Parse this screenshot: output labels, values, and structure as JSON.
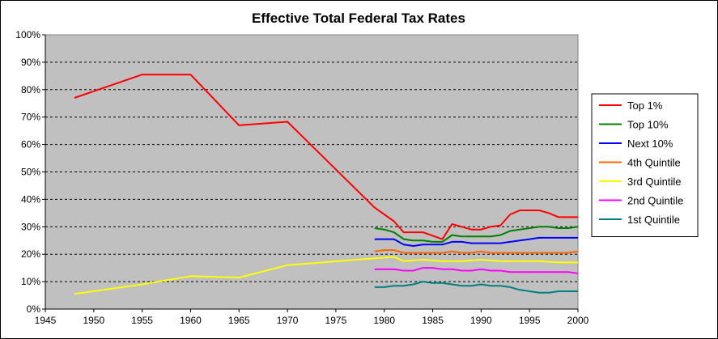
{
  "chart_data": {
    "type": "line",
    "title": "Effective Total Federal Tax Rates",
    "xlabel": "",
    "ylabel": "",
    "xlim": [
      1945,
      2000
    ],
    "ylim": [
      0,
      100
    ],
    "x_ticks": [
      "1945",
      "1950",
      "1955",
      "1960",
      "1965",
      "1970",
      "1975",
      "1980",
      "1985",
      "1990",
      "1995",
      "2000"
    ],
    "y_ticks": [
      "0%",
      "10%",
      "20%",
      "30%",
      "40%",
      "50%",
      "60%",
      "70%",
      "80%",
      "90%",
      "100%"
    ],
    "grid": "horizontal dashed",
    "legend_position": "right",
    "plot_background": "#c0c0c0",
    "series": [
      {
        "name": "Top 1%",
        "color": "#ff0000",
        "x": [
          1948,
          1955,
          1960,
          1965,
          1970,
          1979,
          1981,
          1982,
          1984,
          1986,
          1987,
          1988,
          1989,
          1990,
          1991,
          1992,
          1993,
          1994,
          1995,
          1996,
          1997,
          1998,
          1999,
          2000
        ],
        "y": [
          77,
          85.5,
          85.5,
          67,
          68.3,
          37,
          32,
          28,
          28,
          25.5,
          31,
          30,
          29,
          29,
          30,
          30.5,
          34.5,
          36,
          36,
          36,
          35,
          33.5,
          33.5,
          33.5
        ]
      },
      {
        "name": "Top 10%",
        "color": "#008000",
        "x": [
          1979,
          1980,
          1981,
          1982,
          1983,
          1984,
          1985,
          1986,
          1987,
          1988,
          1989,
          1990,
          1991,
          1992,
          1993,
          1994,
          1995,
          1996,
          1997,
          1998,
          1999,
          2000
        ],
        "y": [
          29.5,
          29,
          28,
          25.5,
          25,
          25,
          24.5,
          24.5,
          27,
          26.5,
          26.5,
          26.5,
          26.5,
          27,
          28.5,
          29,
          29.5,
          30,
          30,
          29.5,
          29.5,
          30
        ]
      },
      {
        "name": "Next 10%",
        "color": "#0000ff",
        "x": [
          1979,
          1980,
          1981,
          1982,
          1983,
          1984,
          1985,
          1986,
          1987,
          1988,
          1989,
          1990,
          1991,
          1992,
          1993,
          1994,
          1995,
          1996,
          1997,
          1998,
          1999,
          2000
        ],
        "y": [
          25.5,
          25.5,
          25.5,
          23.5,
          23,
          23.5,
          23.5,
          23.5,
          24.5,
          24.5,
          24,
          24,
          24,
          24,
          24.5,
          25,
          25.5,
          26,
          26,
          26,
          26,
          26
        ]
      },
      {
        "name": "4th Quintile",
        "color": "#ff6600",
        "x": [
          1979,
          1980,
          1981,
          1982,
          1983,
          1984,
          1985,
          1986,
          1987,
          1988,
          1989,
          1990,
          1991,
          1992,
          1993,
          1994,
          1995,
          1996,
          1997,
          1998,
          1999,
          2000
        ],
        "y": [
          21,
          21.5,
          21.5,
          20.5,
          20.5,
          20.5,
          20.5,
          20.5,
          21,
          20.5,
          20.5,
          21,
          20.5,
          20.5,
          20.5,
          20.5,
          20.5,
          20.5,
          20.5,
          20.5,
          20.5,
          21
        ]
      },
      {
        "name": "3rd Quintile",
        "color": "#ffff00",
        "x": [
          1948,
          1955,
          1960,
          1965,
          1970,
          1979,
          1981,
          1982,
          1984,
          1986,
          1988,
          1990,
          1992,
          1994,
          1996,
          1998,
          2000
        ],
        "y": [
          5.5,
          9,
          12,
          11.5,
          16,
          18.5,
          19,
          17.5,
          18,
          17.5,
          17.5,
          18,
          17.5,
          17.5,
          17.5,
          17,
          17
        ]
      },
      {
        "name": "2nd Quintile",
        "color": "#ff00ff",
        "x": [
          1979,
          1980,
          1981,
          1982,
          1983,
          1984,
          1985,
          1986,
          1987,
          1988,
          1989,
          1990,
          1991,
          1992,
          1993,
          1994,
          1995,
          1996,
          1997,
          1998,
          1999,
          2000
        ],
        "y": [
          14.5,
          14.5,
          14.5,
          14,
          14,
          15,
          15,
          14.5,
          14.5,
          14,
          14,
          14.5,
          14,
          14,
          13.5,
          13.5,
          13.5,
          13.5,
          13.5,
          13.5,
          13.5,
          13
        ]
      },
      {
        "name": "1st Quintile",
        "color": "#008080",
        "x": [
          1979,
          1980,
          1981,
          1982,
          1983,
          1984,
          1985,
          1986,
          1987,
          1988,
          1989,
          1990,
          1991,
          1992,
          1993,
          1994,
          1995,
          1996,
          1997,
          1998,
          1999,
          2000
        ],
        "y": [
          8,
          8,
          8.5,
          8.5,
          9,
          10,
          9.5,
          9.5,
          9,
          8.5,
          8.5,
          9,
          8.5,
          8.5,
          8,
          7,
          6.5,
          6,
          6,
          6.5,
          6.5,
          6.5
        ]
      }
    ]
  }
}
